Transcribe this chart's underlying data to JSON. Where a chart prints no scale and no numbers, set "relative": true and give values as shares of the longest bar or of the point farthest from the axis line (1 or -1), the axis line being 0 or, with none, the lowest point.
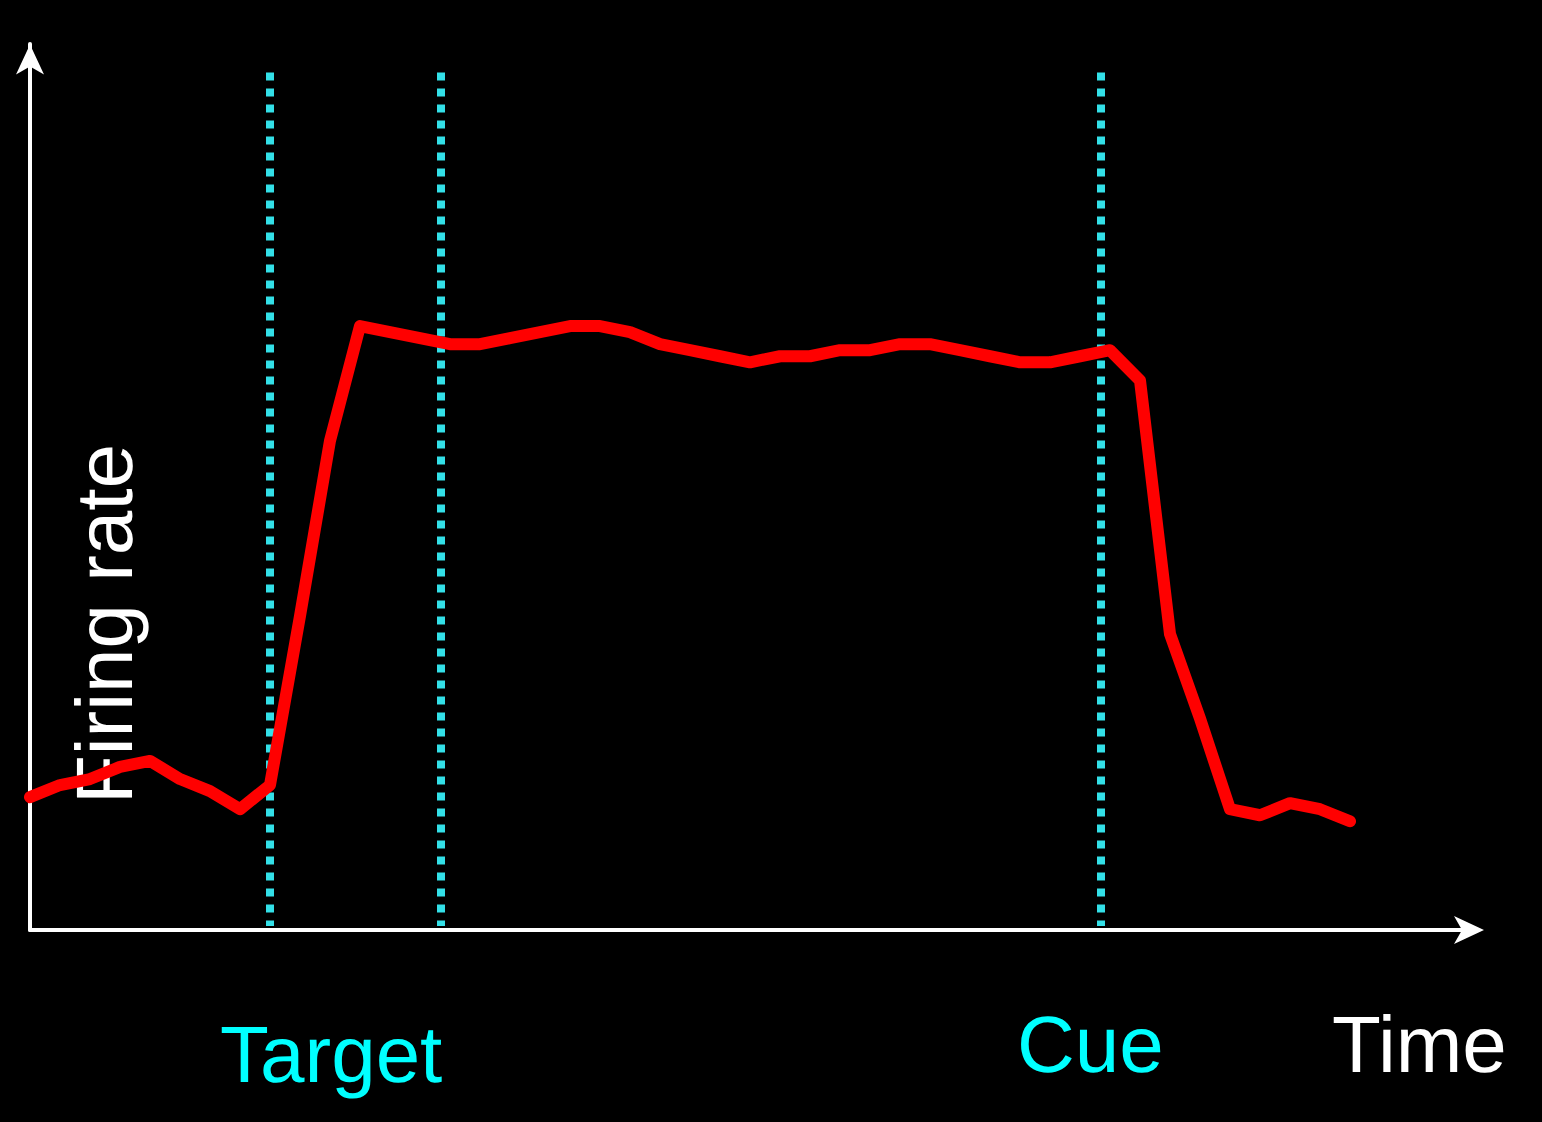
{
  "chart_data": {
    "type": "line",
    "relative": true,
    "xlabel": "Time",
    "ylabel": "Firing rate",
    "grid": false,
    "marker": "none",
    "line_style": "solid",
    "categories": [
      null,
      null,
      null,
      null,
      null,
      null,
      null,
      null,
      null,
      null,
      null,
      null,
      null,
      null,
      null,
      null,
      null,
      null,
      null,
      null,
      null,
      null,
      null,
      null,
      null,
      null,
      null,
      null,
      null,
      null,
      null,
      null,
      null,
      null,
      null,
      null,
      null,
      null,
      null,
      null,
      null,
      null,
      null,
      null,
      null
    ],
    "series": [
      {
        "color": "#ff0000",
        "values": [
          0.22,
          0.24,
          0.25,
          0.27,
          0.28,
          0.25,
          0.23,
          0.2,
          0.24,
          0.52,
          0.81,
          1,
          0.99,
          0.98,
          0.97,
          0.97,
          0.98,
          0.99,
          1,
          1,
          0.99,
          0.97,
          0.96,
          0.95,
          0.94,
          0.95,
          0.95,
          0.96,
          0.96,
          0.97,
          0.97,
          0.96,
          0.95,
          0.94,
          0.94,
          0.95,
          0.96,
          0.91,
          0.49,
          0.35,
          0.2,
          0.19,
          0.21,
          0.2,
          0.18
        ]
      }
    ],
    "annotations": [
      "Target",
      "Cue"
    ]
  }
}
